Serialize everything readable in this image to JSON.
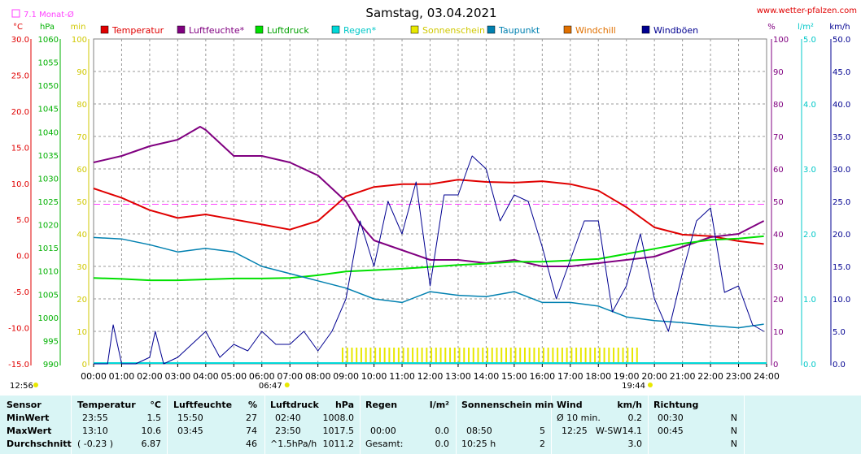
{
  "header": {
    "title": "Samstag, 03.04.2021",
    "source": "www.wetter-pfalzen.com",
    "monthly_avg_label": "7.1 Monat-Ø"
  },
  "colors": {
    "temperature": "#e00000",
    "humidity": "#800080",
    "pressure": "#00e000",
    "rain": "#00d8d8",
    "sunshine": "#e8e800",
    "dewpoint": "#0080b0",
    "windchill": "#e07000",
    "gusts": "#000090",
    "monthly_avg": "#ff40ff"
  },
  "chart_data": {
    "type": "line",
    "x_labels": [
      "00:00",
      "01:00",
      "02:00",
      "03:00",
      "04:00",
      "05:00",
      "06:00",
      "07:00",
      "08:00",
      "09:00",
      "10:00",
      "11:00",
      "12:00",
      "13:00",
      "14:00",
      "15:00",
      "16:00",
      "17:00",
      "18:00",
      "19:00",
      "20:00",
      "21:00",
      "22:00",
      "23:00",
      "24:00"
    ],
    "sunrise": "06:47",
    "sunset": "19:44",
    "monthly_avg_temperature": 7.1,
    "axes": {
      "temperature": {
        "unit": "°C",
        "range": [
          -15,
          30
        ],
        "ticks": [
          "30.0",
          "25.0",
          "20.0",
          "15.0",
          "10.0",
          "5.0",
          "0.0",
          "-5.0",
          "-10.0",
          "-15.0"
        ]
      },
      "pressure": {
        "unit": "hPa",
        "range": [
          990,
          1060
        ],
        "ticks": [
          "1060",
          "1055",
          "1050",
          "1045",
          "1040",
          "1035",
          "1030",
          "1025",
          "1020",
          "1015",
          "1010",
          "1005",
          "1000",
          "995",
          "990"
        ]
      },
      "sunshine": {
        "unit": "min",
        "range": [
          0,
          100
        ],
        "ticks": [
          "100",
          "90",
          "80",
          "70",
          "60",
          "50",
          "40",
          "30",
          "20",
          "10",
          "0"
        ]
      },
      "humidity": {
        "unit": "%",
        "range": [
          0,
          100
        ],
        "ticks": [
          "100",
          "90",
          "80",
          "70",
          "60",
          "50",
          "40",
          "30",
          "20",
          "10",
          "0"
        ]
      },
      "rain": {
        "unit": "l/m²",
        "range": [
          0,
          5
        ],
        "ticks": [
          "5.0",
          "4.0",
          "3.0",
          "2.0",
          "1.0",
          "0.0"
        ]
      },
      "wind": {
        "unit": "km/h",
        "range": [
          0,
          50
        ],
        "ticks": [
          "50.0",
          "45.0",
          "40.0",
          "35.0",
          "30.0",
          "25.0",
          "20.0",
          "15.0",
          "10.0",
          "5.0",
          "0.0"
        ]
      }
    },
    "legend": [
      "Temperatur",
      "Luftfeuchte*",
      "Luftdruck",
      "Regen*",
      "Sonnenschein",
      "Taupunkt",
      "Windchill",
      "Windböen"
    ],
    "series": [
      {
        "name": "Temperatur",
        "axis": "temperature",
        "x": [
          0,
          1,
          2,
          3,
          4,
          5,
          6,
          7,
          8,
          9,
          10,
          11,
          12,
          13,
          14,
          15,
          16,
          17,
          18,
          19,
          20,
          21,
          22,
          23,
          23.9
        ],
        "y": [
          9.3,
          8.0,
          6.3,
          5.2,
          5.7,
          5.0,
          4.3,
          3.6,
          4.8,
          8.2,
          9.5,
          9.9,
          9.9,
          10.5,
          10.2,
          10.1,
          10.3,
          9.9,
          9.0,
          6.7,
          3.9,
          2.9,
          2.7,
          2.0,
          1.6
        ]
      },
      {
        "name": "Luftfeuchte*",
        "axis": "humidity",
        "x": [
          0,
          1,
          2,
          3,
          3.8,
          4,
          5,
          6,
          7,
          8,
          9,
          9.5,
          10,
          11,
          12,
          13,
          14,
          15,
          16,
          17,
          18,
          19,
          20,
          21,
          22,
          23,
          23.9
        ],
        "y": [
          62,
          64,
          67,
          69,
          73,
          72,
          64,
          64,
          62,
          58,
          50,
          43,
          38,
          35,
          32,
          32,
          31,
          32,
          30,
          30,
          31,
          32,
          33,
          36,
          39,
          40,
          44
        ]
      },
      {
        "name": "Luftdruck",
        "axis": "pressure",
        "x": [
          0,
          1,
          2,
          3,
          4,
          5,
          6,
          7,
          8,
          9,
          10,
          11,
          12,
          13,
          14,
          15,
          16,
          17,
          18,
          19,
          20,
          21,
          22,
          23,
          23.9
        ],
        "y": [
          1008.5,
          1008.3,
          1008.0,
          1008.0,
          1008.2,
          1008.4,
          1008.4,
          1008.5,
          1009.1,
          1009.9,
          1010.2,
          1010.5,
          1010.9,
          1011.3,
          1011.6,
          1012.0,
          1012.0,
          1012.3,
          1012.6,
          1013.7,
          1014.8,
          1015.9,
          1016.7,
          1017.0,
          1017.5
        ]
      },
      {
        "name": "Taupunkt",
        "axis": "temperature",
        "x": [
          0,
          1,
          2,
          3,
          4,
          5,
          6,
          7,
          8,
          9,
          10,
          11,
          12,
          13,
          14,
          15,
          16,
          17,
          18,
          19,
          20,
          21,
          22,
          23,
          23.9
        ],
        "y": [
          2.5,
          2.3,
          1.5,
          0.5,
          1.0,
          0.5,
          -1.5,
          -2.5,
          -3.5,
          -4.5,
          -6.0,
          -6.5,
          -5.0,
          -5.5,
          -5.7,
          -5.0,
          -6.5,
          -6.5,
          -7.0,
          -8.5,
          -9.0,
          -9.3,
          -9.7,
          -10.0,
          -9.5
        ]
      },
      {
        "name": "Windböen",
        "axis": "wind",
        "x": [
          0,
          0.5,
          0.7,
          1,
          1.5,
          2,
          2.2,
          2.5,
          3,
          3.5,
          4,
          4.5,
          5,
          5.5,
          6,
          6.5,
          7,
          7.5,
          8,
          8.5,
          9,
          9.5,
          10,
          10.5,
          11,
          11.5,
          12,
          12.5,
          13,
          13.5,
          14,
          14.5,
          15,
          15.5,
          16,
          16.5,
          17,
          17.5,
          18,
          18.5,
          19,
          19.5,
          20,
          20.5,
          21,
          21.5,
          22,
          22.5,
          23,
          23.5,
          23.9
        ],
        "y": [
          0,
          0,
          6,
          0,
          0,
          1,
          5,
          0,
          1,
          3,
          5,
          1,
          3,
          2,
          5,
          3,
          3,
          5,
          2,
          5,
          10,
          22,
          15,
          25,
          20,
          28,
          12,
          26,
          26,
          32,
          30,
          22,
          26,
          25,
          18,
          10,
          16,
          22,
          22,
          8,
          12,
          20,
          10,
          5,
          14,
          22,
          24,
          11,
          12,
          6,
          5
        ]
      },
      {
        "name": "Sonnenschein",
        "axis": "sunshine",
        "x_start": 8.85,
        "x_end": 19.35,
        "value": 5
      }
    ]
  },
  "summary": {
    "headers": {
      "sensor": "Sensor",
      "temp": "Temperatur",
      "temp_unit": "°C",
      "hum": "Luftfeuchte",
      "hum_unit": "%",
      "press": "Luftdruck",
      "press_unit": "hPa",
      "rain": "Regen",
      "rain_unit": "l/m²",
      "sun": "Sonnenschein min",
      "wind": "Wind",
      "wind_unit": "km/h",
      "dir": "Richtung"
    },
    "rows": [
      {
        "label": "MinWert",
        "temp_time": "23:55",
        "temp": "1.5",
        "hum_time": "15:50",
        "hum": "27",
        "press_time": "02:40",
        "press": "1008.0",
        "rain_time": "",
        "rain": "",
        "sun_time": "",
        "sun": "",
        "wind_time": "Ø 10 min.",
        "wind_dir": "",
        "wind": "0.2",
        "dir_time": "00:30",
        "dir": "N"
      },
      {
        "label": "MaxWert",
        "temp_time": "13:10",
        "temp": "10.6",
        "hum_time": "03:45",
        "hum": "74",
        "press_time": "23:50",
        "press": "1017.5",
        "rain_time": "00:00",
        "rain": "0.0",
        "sun_time": "08:50",
        "sun": "5",
        "wind_time": "12:25",
        "wind_dir": "W-SW",
        "wind": "14.1",
        "dir_time": "00:45",
        "dir": "N"
      },
      {
        "label": "Durchschnitt",
        "temp_time": "( -0.23 )",
        "temp": "6.87",
        "hum_time": "",
        "hum": "46",
        "press_time": "^1.5hPa/h",
        "press": "1011.2",
        "rain_time": "Gesamt:",
        "rain": "0.0",
        "sun_time": "10:25 h",
        "sun": "2",
        "wind_time": "",
        "wind_dir": "",
        "wind": "3.0",
        "dir_time": "",
        "dir": "N"
      }
    ]
  }
}
